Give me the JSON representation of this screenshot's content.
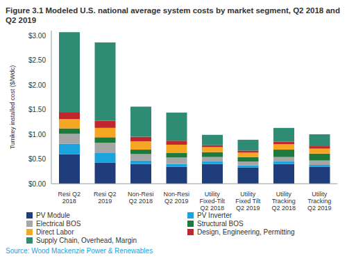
{
  "chart_data": {
    "type": "bar",
    "title": "Figure 3.1 Modeled U.S. national average system costs by market segment, Q2 2018 and Q2 2019",
    "y_label": "Turnkey installed cost ($/Wdc)",
    "source": "Source: Wood Mackenzie Power & Renewables",
    "stacked": true,
    "grid": false,
    "legend": "bottom",
    "categories": [
      "Resi Q2 2018",
      "Resi Q2 2019",
      "Non-Resi Q2 2018",
      "Non-Resi Q2 2019",
      "Utility Fixed-Tilt Q2 2018",
      "Utility Fixed Tilt Q2 2019",
      "Utility Tracking Q2 2018",
      "Utility Tracking Q2 2019"
    ],
    "series": [
      {
        "name": "PV Module",
        "color": "#1f3d7a",
        "values": [
          0.6,
          0.43,
          0.4,
          0.34,
          0.4,
          0.33,
          0.4,
          0.34
        ]
      },
      {
        "name": "PV Inverter",
        "color": "#1aa3dc",
        "values": [
          0.21,
          0.2,
          0.07,
          0.06,
          0.05,
          0.04,
          0.05,
          0.04
        ]
      },
      {
        "name": "Electrical BOS",
        "color": "#a6a6a6",
        "values": [
          0.2,
          0.2,
          0.13,
          0.13,
          0.09,
          0.08,
          0.09,
          0.09
        ]
      },
      {
        "name": "Structural BOS",
        "color": "#1e7a3c",
        "values": [
          0.11,
          0.11,
          0.09,
          0.09,
          0.1,
          0.09,
          0.15,
          0.14
        ]
      },
      {
        "name": "Direct Labor",
        "color": "#f5a623",
        "values": [
          0.19,
          0.19,
          0.17,
          0.17,
          0.1,
          0.09,
          0.11,
          0.1
        ]
      },
      {
        "name": "Design, Engineering, Permitting",
        "color": "#c0262c",
        "values": [
          0.14,
          0.14,
          0.09,
          0.08,
          0.04,
          0.04,
          0.05,
          0.05
        ]
      },
      {
        "name": "Supply Chain, Overhead, Margin",
        "color": "#2e8b74",
        "values": [
          1.62,
          1.59,
          0.61,
          0.57,
          0.21,
          0.22,
          0.28,
          0.24
        ]
      }
    ],
    "ylim": [
      0,
      3.1
    ],
    "yticks": [
      {
        "value": 0,
        "label": "$0.00"
      },
      {
        "value": 0.5,
        "label": "$0.50"
      },
      {
        "value": 1,
        "label": "$1.00"
      },
      {
        "value": 1.5,
        "label": "$1.50"
      },
      {
        "value": 2,
        "label": "$2.00"
      },
      {
        "value": 2.5,
        "label": "$2.50"
      },
      {
        "value": 3,
        "label": "$3.00"
      }
    ]
  }
}
